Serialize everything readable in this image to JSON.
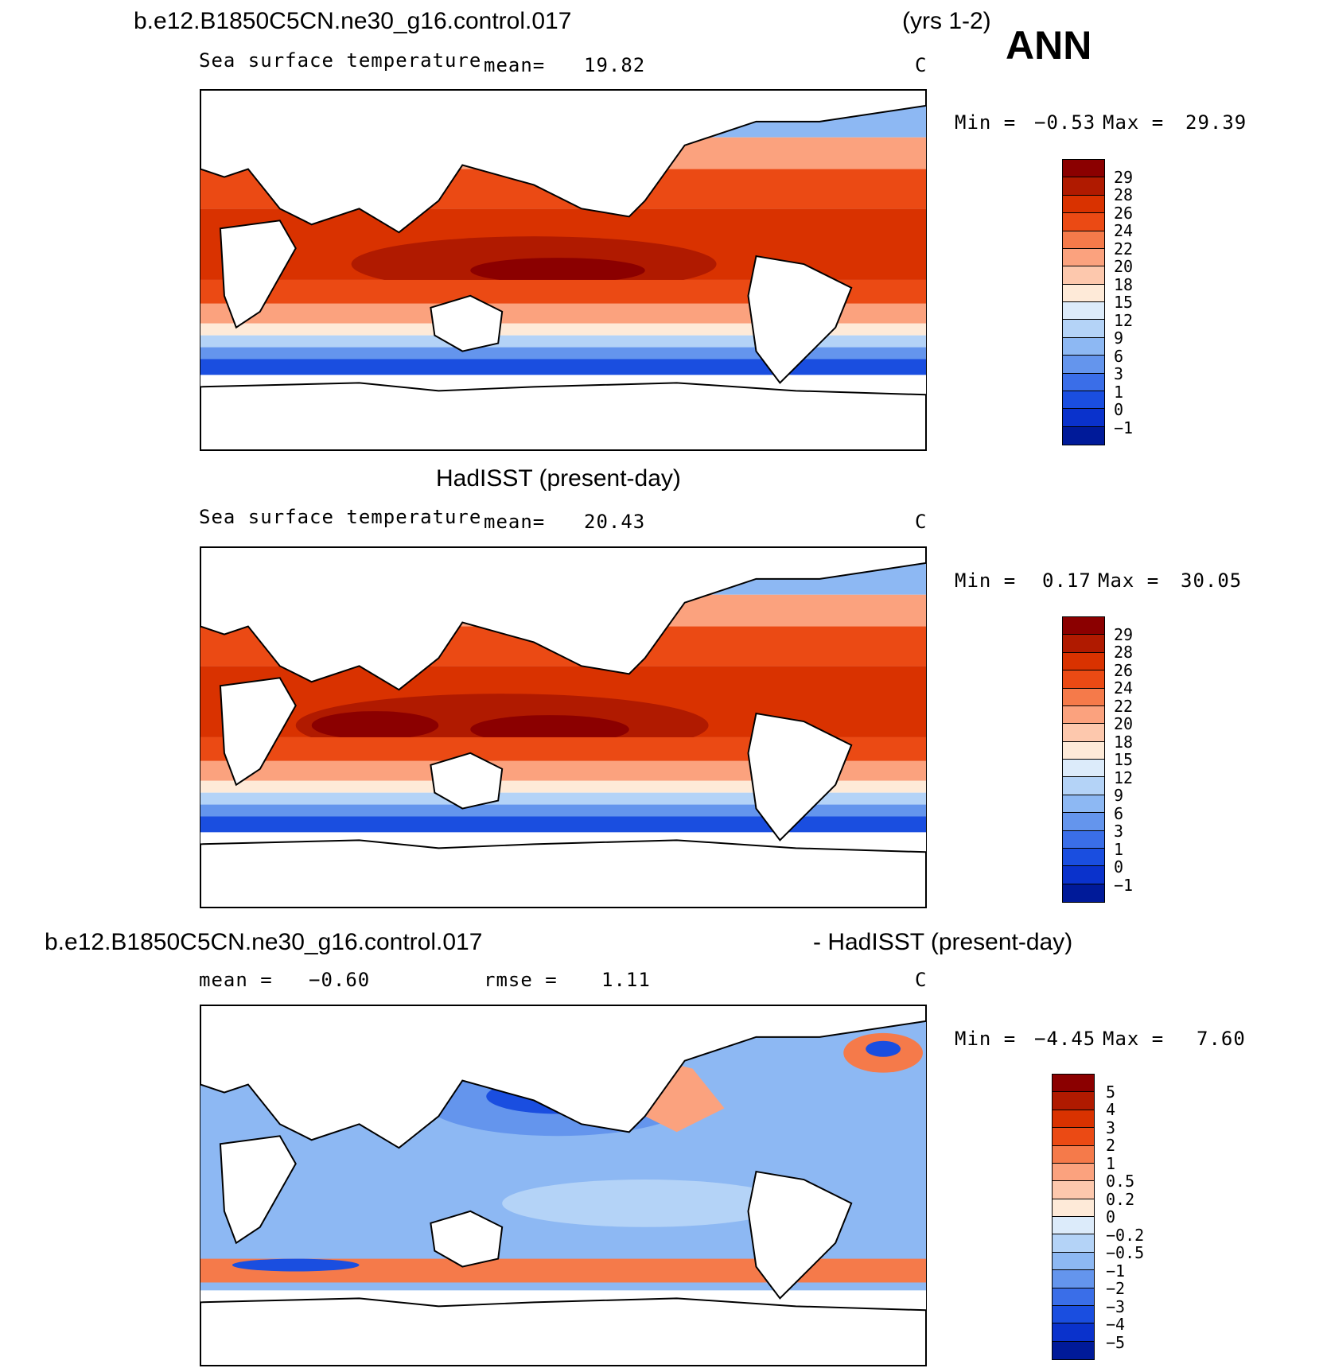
{
  "header": {
    "case_name": "b.e12.B1850C5CN.ne30_g16.control.017",
    "years": "(yrs 1-2)",
    "season": "ANN"
  },
  "panels": [
    {
      "id": "model",
      "variable": "Sea surface temperature",
      "mean_label": "mean=",
      "mean_value": "19.82",
      "units": "C",
      "min_label": "Min =",
      "min_value": "−0.53",
      "max_label": "Max =",
      "max_value": "29.39",
      "colorbar_levels": [
        "29",
        "28",
        "26",
        "24",
        "22",
        "20",
        "18",
        "15",
        "12",
        "9",
        "6",
        "3",
        "1",
        "0",
        "−1"
      ],
      "colors": [
        "#8b0000",
        "#b01a00",
        "#d93200",
        "#eb4a14",
        "#f57a4a",
        "#fba27e",
        "#fdc8ad",
        "#feead8",
        "#dcebfa",
        "#b4d3f7",
        "#8db8f3",
        "#6495ed",
        "#3a6ee8",
        "#1a4ee0",
        "#0a32cc",
        "#001a99"
      ]
    },
    {
      "id": "obs",
      "title": "HadISST (present-day)",
      "variable": "Sea surface temperature",
      "mean_label": "mean=",
      "mean_value": "20.43",
      "units": "C",
      "min_label": "Min =",
      "min_value": "0.17",
      "max_label": "Max =",
      "max_value": "30.05",
      "colorbar_levels": [
        "29",
        "28",
        "26",
        "24",
        "22",
        "20",
        "18",
        "15",
        "12",
        "9",
        "6",
        "3",
        "1",
        "0",
        "−1"
      ],
      "colors": [
        "#8b0000",
        "#b01a00",
        "#d93200",
        "#eb4a14",
        "#f57a4a",
        "#fba27e",
        "#fdc8ad",
        "#feead8",
        "#dcebfa",
        "#b4d3f7",
        "#8db8f3",
        "#6495ed",
        "#3a6ee8",
        "#1a4ee0",
        "#0a32cc",
        "#001a99"
      ]
    },
    {
      "id": "diff",
      "title_left": "b.e12.B1850C5CN.ne30_g16.control.017",
      "title_right": "- HadISST (present-day)",
      "mean_label": "mean =",
      "mean_value": "−0.60",
      "rmse_label": "rmse =",
      "rmse_value": "1.11",
      "units": "C",
      "min_label": "Min =",
      "min_value": "−4.45",
      "max_label": "Max =",
      "max_value": "7.60",
      "colorbar_levels": [
        "5",
        "4",
        "3",
        "2",
        "1",
        "0.5",
        "0.2",
        "0",
        "−0.2",
        "−0.5",
        "−1",
        "−2",
        "−3",
        "−4",
        "−5"
      ],
      "colors": [
        "#8b0000",
        "#b01a00",
        "#d93200",
        "#eb4a14",
        "#f57a4a",
        "#fba27e",
        "#fdc8ad",
        "#feead8",
        "#dcebfa",
        "#b4d3f7",
        "#8db8f3",
        "#6495ed",
        "#3a6ee8",
        "#1a4ee0",
        "#0a32cc",
        "#001a99"
      ]
    }
  ]
}
